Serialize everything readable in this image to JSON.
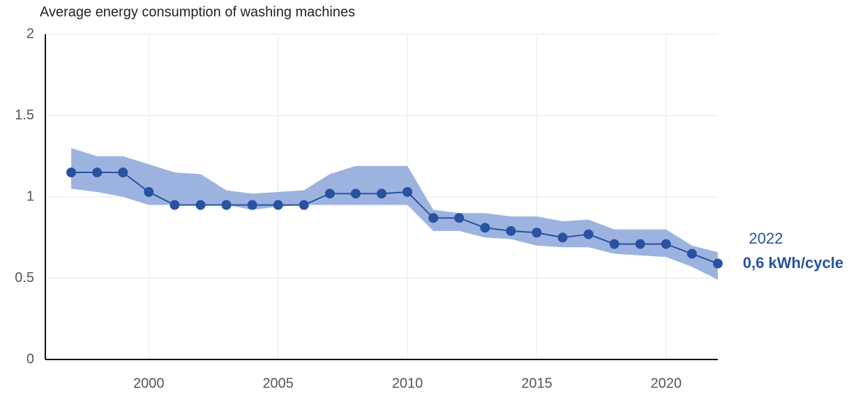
{
  "chart_data": {
    "type": "line",
    "title": "Average energy consumption of washing machines",
    "x": [
      1997,
      1998,
      1999,
      2000,
      2001,
      2002,
      2003,
      2004,
      2005,
      2006,
      2007,
      2008,
      2009,
      2010,
      2011,
      2012,
      2013,
      2014,
      2015,
      2016,
      2017,
      2018,
      2019,
      2020,
      2021,
      2022
    ],
    "series": [
      {
        "color": "#2852a0",
        "values": [
          1.15,
          1.15,
          1.15,
          1.03,
          0.95,
          0.95,
          0.95,
          0.95,
          0.95,
          0.95,
          1.02,
          1.02,
          1.02,
          1.03,
          0.87,
          0.87,
          0.81,
          0.79,
          0.78,
          0.75,
          0.77,
          0.71,
          0.71,
          0.71,
          0.65,
          0.59
        ]
      }
    ],
    "band": {
      "color": "#9db3df",
      "upper": [
        1.3,
        1.25,
        1.25,
        1.2,
        1.15,
        1.14,
        1.04,
        1.02,
        1.03,
        1.04,
        1.14,
        1.19,
        1.19,
        1.19,
        0.92,
        0.9,
        0.9,
        0.88,
        0.88,
        0.85,
        0.86,
        0.8,
        0.8,
        0.8,
        0.7,
        0.66
      ],
      "lower": [
        1.05,
        1.03,
        1.0,
        0.95,
        0.95,
        0.95,
        0.95,
        0.92,
        0.94,
        0.95,
        0.95,
        0.95,
        0.95,
        0.95,
        0.79,
        0.79,
        0.75,
        0.74,
        0.7,
        0.69,
        0.69,
        0.65,
        0.64,
        0.63,
        0.57,
        0.49
      ]
    },
    "annotations": [
      "2022",
      "0,6 kWh/cycle"
    ],
    "xlim": [
      1996,
      2022
    ],
    "ylim": [
      0,
      2
    ],
    "xticks": [
      2000,
      2005,
      2010,
      2015,
      2020
    ],
    "yticks": [
      0,
      0.5,
      1,
      1.5,
      2
    ],
    "grid": true
  }
}
